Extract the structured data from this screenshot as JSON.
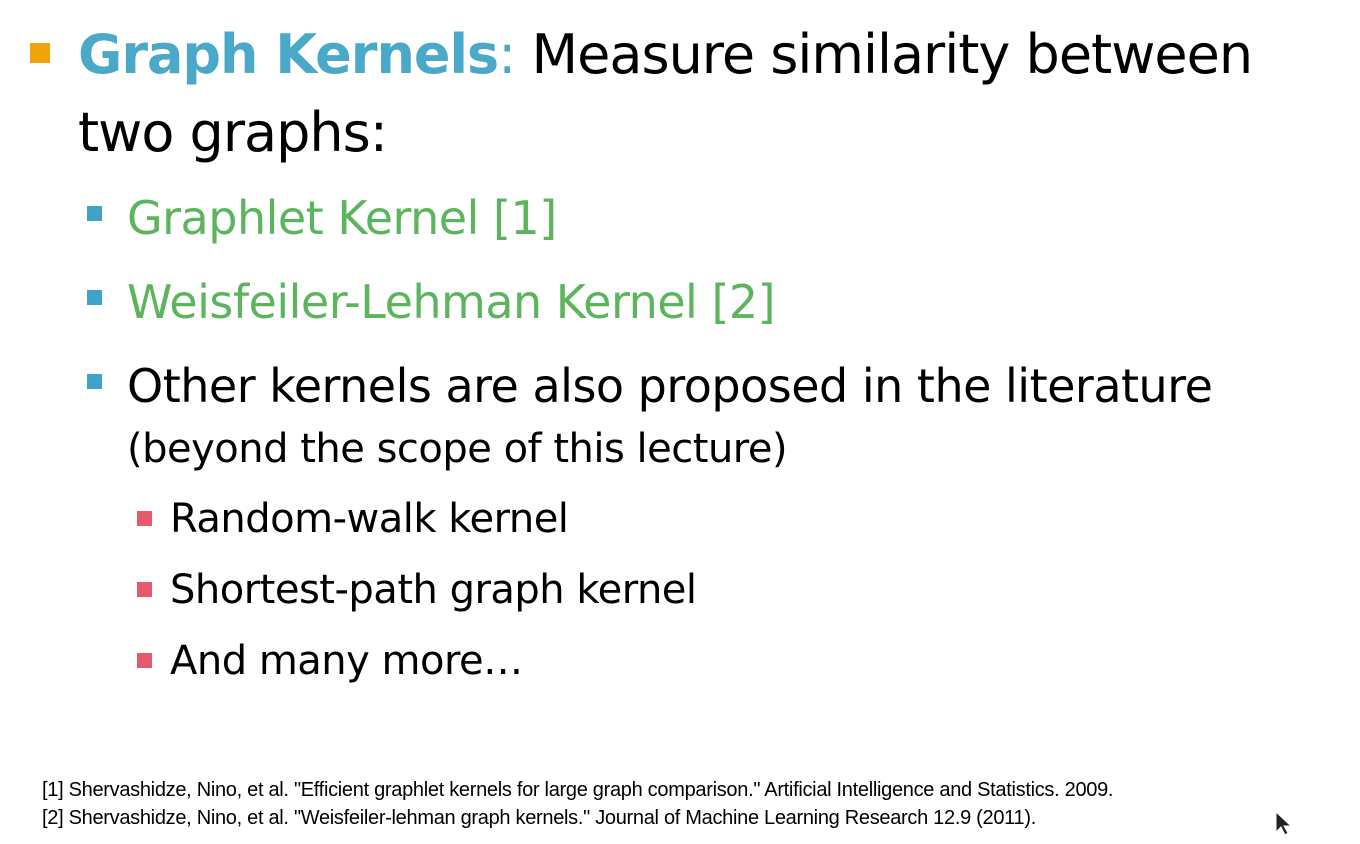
{
  "main": {
    "keyword": "Graph Kernels",
    "colon": ":",
    "text_line1": " Measure similarity between",
    "text_line2": "two graphs:"
  },
  "items": [
    {
      "label": "Graphlet Kernel [1]"
    },
    {
      "label": "Weisfeiler-Lehman Kernel [2]"
    },
    {
      "label": "Other kernels are also proposed in the literature"
    }
  ],
  "note": "(beyond the scope of this lecture)",
  "subitems": [
    {
      "label": "Random-walk kernel"
    },
    {
      "label": "Shortest-path graph kernel"
    },
    {
      "label": "And many more…"
    }
  ],
  "references": [
    "[1] Shervashidze, Nino, et al. \"Efficient graphlet kernels for large graph comparison.\" Artificial Intelligence and Statistics. 2009.",
    "[2] Shervashidze, Nino, et al. \"Weisfeiler-lehman graph kernels.\" Journal of Machine Learning Research 12.9 (2011)."
  ],
  "colors": {
    "keyword": "#4aa8c8",
    "main_bullet": "#f0a30a",
    "level2_bullet": "#3fa2c9",
    "level3_bullet": "#e65a6e",
    "green_text": "#5cb55c"
  },
  "icons": [
    "cursor-icon"
  ]
}
